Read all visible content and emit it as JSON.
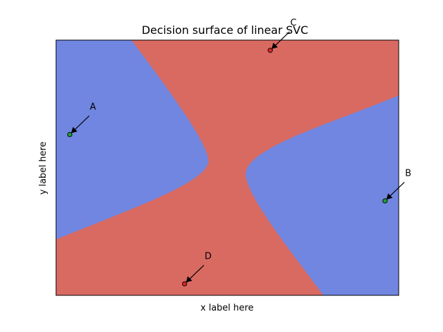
{
  "chart_data": {
    "type": "scatter",
    "title": "Decision surface of linear SVC",
    "xlabel": "x label here",
    "ylabel": "y label here",
    "xlim": [
      0,
      1
    ],
    "ylim": [
      0,
      1
    ],
    "xticks": [],
    "yticks": [],
    "grid": false,
    "legend": "none",
    "regions": {
      "class_a_color": "#7086e0",
      "class_b_color": "#d96a62"
    },
    "points": [
      {
        "label": "A",
        "x": 0.04,
        "y": 0.63,
        "color": "#1f9e2f"
      },
      {
        "label": "B",
        "x": 0.96,
        "y": 0.37,
        "color": "#1f9e2f"
      },
      {
        "label": "C",
        "x": 0.625,
        "y": 0.96,
        "color": "#d62728"
      },
      {
        "label": "D",
        "x": 0.375,
        "y": 0.045,
        "color": "#d62728"
      }
    ]
  }
}
